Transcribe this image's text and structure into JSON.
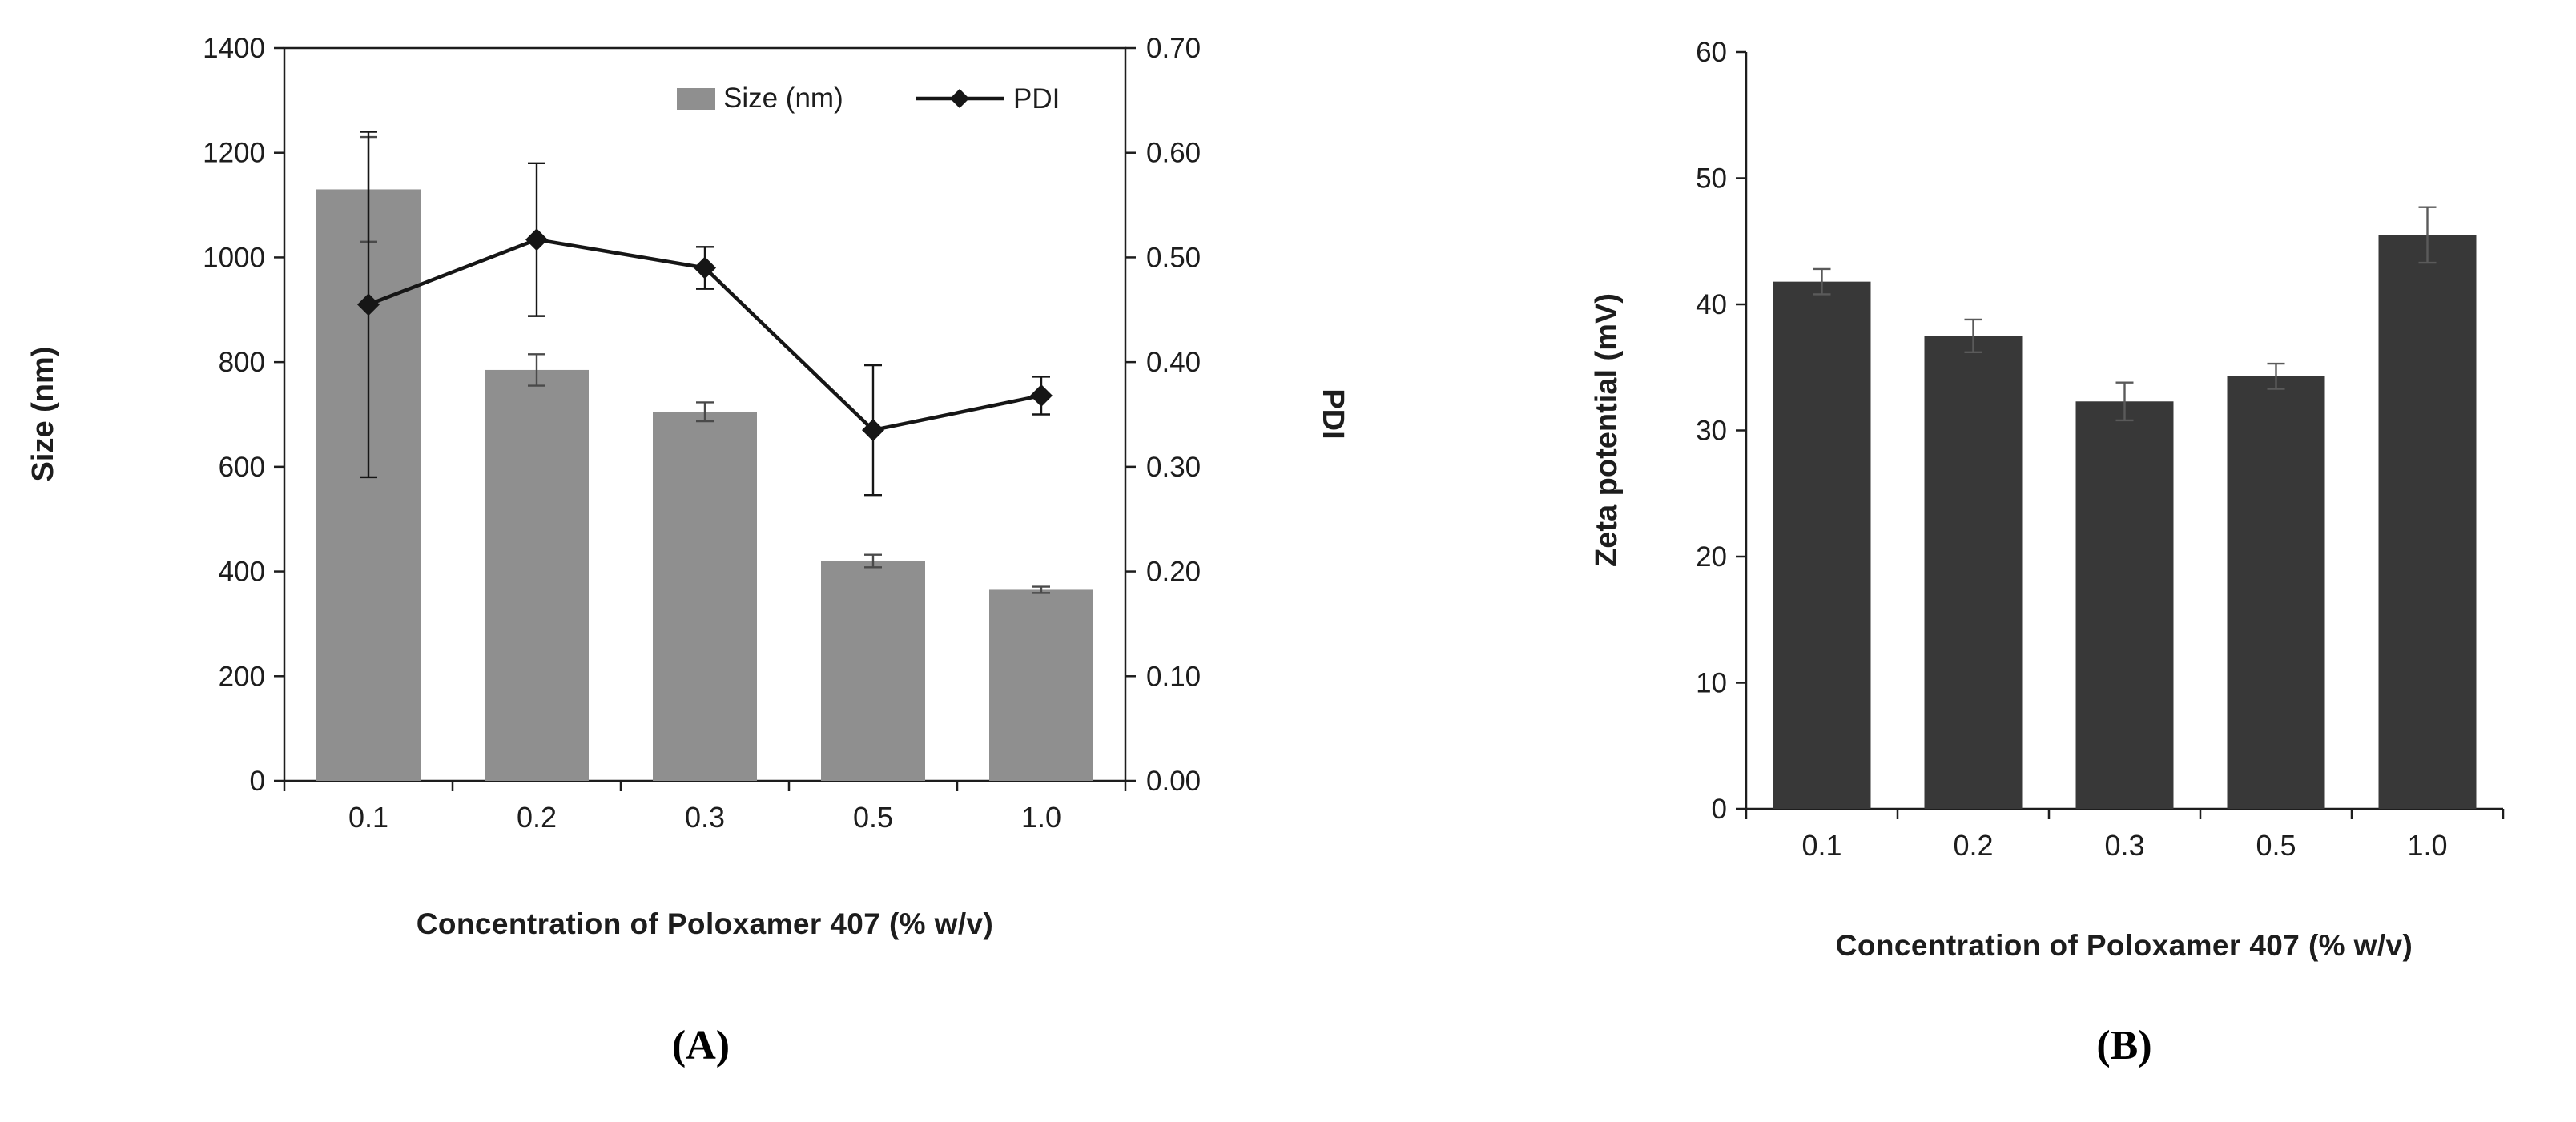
{
  "panels": [
    {
      "label": "(A)"
    },
    {
      "label": "(B)"
    }
  ],
  "chart_data": [
    {
      "type": "bar",
      "subtype": "bar-line-combo",
      "categories": [
        "0.1",
        "0.2",
        "0.3",
        "0.5",
        "1.0"
      ],
      "series": [
        {
          "name": "Size (nm)",
          "type": "bar",
          "axis": "left",
          "values": [
            1130,
            785,
            705,
            420,
            365
          ],
          "errors": [
            100,
            30,
            18,
            12,
            6
          ],
          "color": "#8f8f8f"
        },
        {
          "name": "PDI",
          "type": "line",
          "axis": "right",
          "values": [
            0.455,
            0.517,
            0.49,
            0.335,
            0.368
          ],
          "errors": [
            0.165,
            0.073,
            0.02,
            0.062,
            0.018
          ],
          "color": "#161616"
        }
      ],
      "left_axis": {
        "label": "Size (nm)",
        "min": 0,
        "max": 1400,
        "ticks": [
          "0",
          "200",
          "400",
          "600",
          "800",
          "1000",
          "1200",
          "1400"
        ]
      },
      "right_axis": {
        "label": "PDI",
        "min": 0,
        "max": 0.7,
        "ticks": [
          "0.00",
          "0.10",
          "0.20",
          "0.30",
          "0.40",
          "0.50",
          "0.60",
          "0.70"
        ]
      },
      "xlabel": "Concentration of Poloxamer 407 (% w/v)",
      "legend": {
        "position": "top-inside",
        "items": [
          "Size (nm)",
          "PDI"
        ]
      },
      "grid": false
    },
    {
      "type": "bar",
      "categories": [
        "0.1",
        "0.2",
        "0.3",
        "0.5",
        "1.0"
      ],
      "values": [
        41.8,
        37.5,
        32.3,
        34.3,
        45.5
      ],
      "errors": [
        1.0,
        1.3,
        1.5,
        1.0,
        2.2
      ],
      "ylabel": "Zeta potential (mV)",
      "ylim": [
        0,
        60
      ],
      "yticks": [
        "0",
        "10",
        "20",
        "30",
        "40",
        "50",
        "60"
      ],
      "xlabel": "Concentration of Poloxamer 407 (% w/v)",
      "bar_color": "#383838",
      "grid": false
    }
  ]
}
